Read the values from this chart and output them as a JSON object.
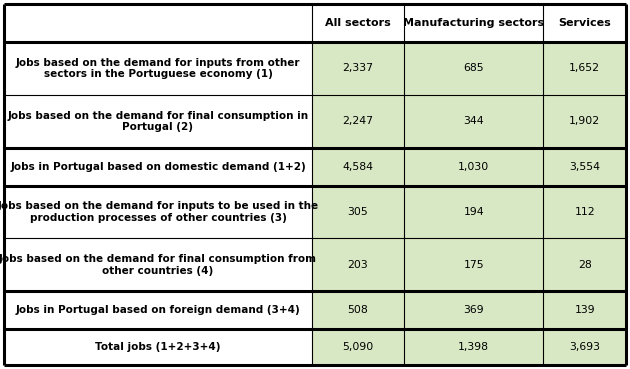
{
  "col_headers": [
    "All sectors",
    "Manufacturing sectors",
    "Services"
  ],
  "rows": [
    {
      "label": "Jobs based on the demand for inputs from other\nsectors in the Portuguese economy (1)",
      "values": [
        "2,337",
        "685",
        "1,652"
      ],
      "bold": true,
      "thick_top": true,
      "thick_bottom": false,
      "two_line": true
    },
    {
      "label": "Jobs based on the demand for final consumption in\nPortugal (2)",
      "values": [
        "2,247",
        "344",
        "1,902"
      ],
      "bold": true,
      "thick_top": false,
      "thick_bottom": false,
      "two_line": true
    },
    {
      "label": "Jobs in Portugal based on domestic demand (1+2)",
      "values": [
        "4,584",
        "1,030",
        "3,554"
      ],
      "bold": true,
      "thick_top": true,
      "thick_bottom": true,
      "two_line": false
    },
    {
      "label": "Jobs based on the demand for inputs to be used in the\nproduction processes of other countries (3)",
      "values": [
        "305",
        "194",
        "112"
      ],
      "bold": true,
      "thick_top": false,
      "thick_bottom": false,
      "two_line": true
    },
    {
      "label": "Jobs based on the demand for final consumption from\nother countries (4)",
      "values": [
        "203",
        "175",
        "28"
      ],
      "bold": true,
      "thick_top": false,
      "thick_bottom": false,
      "two_line": true
    },
    {
      "label": "Jobs in Portugal based on foreign demand (3+4)",
      "values": [
        "508",
        "369",
        "139"
      ],
      "bold": true,
      "thick_top": true,
      "thick_bottom": true,
      "two_line": false
    },
    {
      "label": "Total jobs (1+2+3+4)",
      "values": [
        "5,090",
        "1,398",
        "3,693"
      ],
      "bold": true,
      "thick_top": false,
      "thick_bottom": true,
      "two_line": false
    }
  ],
  "col_header_bg": "#ffffff",
  "data_bg": "#d9e8c4",
  "label_bg": "#ffffff",
  "border_color": "#000000",
  "thin_lw": 0.8,
  "thick_lw": 2.2,
  "fig_width": 6.3,
  "fig_height": 3.69,
  "dpi": 100,
  "label_fontsize": 7.5,
  "header_fontsize": 8.0,
  "value_fontsize": 7.8
}
